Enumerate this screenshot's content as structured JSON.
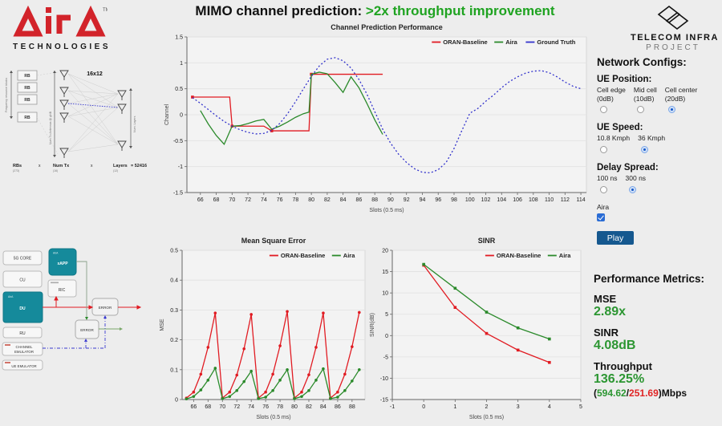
{
  "header": {
    "title_black": "MIMO channel prediction:",
    "title_green": " >2x throughput improvement",
    "aira": {
      "brand": "AirA",
      "tm": "TM",
      "tagline": "TECHNOLOGIES"
    },
    "tip": {
      "line1": "TELECOM INFRA",
      "line2": "PROJECT"
    }
  },
  "mimo_diagram": {
    "grid_size": "16x12",
    "freq_axis": "Frequency resource blocks",
    "tx_axis": "Num Tx Antennas @ gNB",
    "layers_axis": "Num. Layers",
    "rb": "RB",
    "formula": {
      "rbs": "RBs",
      "rbs_sub": "(273)",
      "x1": "x",
      "numtx": "Num Tx",
      "numtx_sub": "(16)",
      "x2": "x",
      "layers": "Layers",
      "layers_sub": "(12)",
      "result": "=  52416"
    }
  },
  "system_diagram": {
    "core": "5G CORE",
    "cu": "CU",
    "du": "DU",
    "ru": "RU",
    "channel_line1": "CHANNEL",
    "channel_line2": "EMULATOR",
    "ue": "UE EMULATOR",
    "xapp": "xAPP",
    "ric": "RIC",
    "error1": "ERROR",
    "error2": "ERROR",
    "aira_mark": "AirA"
  },
  "network_configs": {
    "heading": "Network Configs:",
    "ue_position": {
      "label": "UE Position:",
      "options": [
        {
          "label": "Cell edge",
          "sub": "(0dB)",
          "selected": false
        },
        {
          "label": "Mid cell",
          "sub": "(10dB)",
          "selected": false
        },
        {
          "label": "Cell center",
          "sub": "(20dB)",
          "selected": true
        }
      ]
    },
    "ue_speed": {
      "label": "UE Speed:",
      "options": [
        {
          "label": "10.8 Kmph",
          "selected": false
        },
        {
          "label": "36 Kmph",
          "selected": true
        }
      ]
    },
    "delay_spread": {
      "label": "Delay Spread:",
      "options": [
        {
          "label": "100 ns",
          "selected": false
        },
        {
          "label": "300 ns",
          "selected": true
        }
      ]
    },
    "aira_checkbox": {
      "label": "Aira",
      "checked": true
    },
    "play_label": "Play"
  },
  "metrics": {
    "heading": "Performance Metrics:",
    "mse_label": "MSE",
    "mse_value": "2.89x",
    "sinr_label": "SINR",
    "sinr_value": "4.08dB",
    "tp_label": "Throughput",
    "tp_value": "136.25%",
    "tp_open": "(",
    "tp_aira": "594.62",
    "tp_slash": "/",
    "tp_base": "251.69",
    "tp_close": ")Mbps"
  },
  "colors": {
    "red": "#e11b22",
    "green": "#2b8a2b",
    "blue": "#3333cc",
    "teal": "#158a9b",
    "brand_red": "#d2232a",
    "play_blue": "#15588f"
  },
  "chart_data": [
    {
      "type": "line",
      "title": "Channel Prediction Performance",
      "xlabel": "Slots (0.5 ms)",
      "ylabel": "Channel",
      "xlim": [
        64.3,
        114.7
      ],
      "ylim": [
        -1.5,
        1.5
      ],
      "xticks": [
        66,
        68,
        70,
        72,
        74,
        76,
        78,
        80,
        82,
        84,
        86,
        88,
        90,
        92,
        94,
        96,
        98,
        100,
        102,
        104,
        106,
        108,
        110,
        112,
        114
      ],
      "yticks": [
        -1.5,
        -1,
        -0.5,
        0,
        0.5,
        1,
        1.5
      ],
      "legend_position": "top-right",
      "grid": true,
      "series": [
        {
          "name": "ORAN-Baseline",
          "color": "#e11b22",
          "dash": "solid",
          "marker": "square",
          "marker_xs": [
            65,
            70,
            75,
            80,
            85
          ],
          "points": [
            [
              65,
              0.34
            ],
            [
              69,
              0.34
            ],
            [
              69.7,
              0.34
            ],
            [
              70,
              -0.22
            ],
            [
              74,
              -0.22
            ],
            [
              75,
              -0.31
            ],
            [
              79,
              -0.31
            ],
            [
              79.7,
              -0.31
            ],
            [
              80,
              0.78
            ],
            [
              89,
              0.78
            ]
          ]
        },
        {
          "name": "Aira",
          "color": "#2b8a2b",
          "dash": "solid",
          "marker": "none",
          "points": [
            [
              66,
              0.08
            ],
            [
              67,
              -0.18
            ],
            [
              68,
              -0.4
            ],
            [
              69,
              -0.57
            ],
            [
              70,
              -0.22
            ],
            [
              71,
              -0.21
            ],
            [
              72,
              -0.17
            ],
            [
              73,
              -0.12
            ],
            [
              74,
              -0.09
            ],
            [
              75,
              -0.28
            ],
            [
              76,
              -0.22
            ],
            [
              77,
              -0.14
            ],
            [
              78,
              -0.05
            ],
            [
              79,
              0.02
            ],
            [
              79.7,
              0.05
            ],
            [
              80,
              0.78
            ],
            [
              81,
              0.82
            ],
            [
              82,
              0.79
            ],
            [
              83,
              0.62
            ],
            [
              84,
              0.43
            ],
            [
              85,
              0.73
            ],
            [
              86,
              0.52
            ],
            [
              87,
              0.22
            ],
            [
              88,
              -0.1
            ],
            [
              89,
              -0.38
            ]
          ]
        },
        {
          "name": "Ground Truth",
          "color": "#3333cc",
          "dash": "dot",
          "marker": "none",
          "points": [
            [
              65,
              0.33
            ],
            [
              66,
              0.22
            ],
            [
              67,
              0.1
            ],
            [
              68,
              -0.02
            ],
            [
              69,
              -0.13
            ],
            [
              70,
              -0.22
            ],
            [
              71,
              -0.29
            ],
            [
              72,
              -0.34
            ],
            [
              73,
              -0.37
            ],
            [
              74,
              -0.36
            ],
            [
              75,
              -0.3
            ],
            [
              76,
              -0.17
            ],
            [
              77,
              0.02
            ],
            [
              78,
              0.25
            ],
            [
              79,
              0.5
            ],
            [
              80,
              0.74
            ],
            [
              81,
              0.94
            ],
            [
              82,
              1.07
            ],
            [
              83,
              1.1
            ],
            [
              84,
              1.04
            ],
            [
              85,
              0.9
            ],
            [
              86,
              0.68
            ],
            [
              87,
              0.4
            ],
            [
              88,
              0.06
            ],
            [
              89,
              -0.28
            ],
            [
              90,
              -0.55
            ],
            [
              91,
              -0.76
            ],
            [
              92,
              -0.92
            ],
            [
              93,
              -1.04
            ],
            [
              94,
              -1.11
            ],
            [
              95,
              -1.12
            ],
            [
              96,
              -1.06
            ],
            [
              97,
              -0.92
            ],
            [
              98,
              -0.65
            ],
            [
              99,
              -0.3
            ],
            [
              100,
              0.03
            ],
            [
              101,
              0.12
            ],
            [
              102,
              0.26
            ],
            [
              103,
              0.38
            ],
            [
              104,
              0.52
            ],
            [
              105,
              0.64
            ],
            [
              106,
              0.73
            ],
            [
              107,
              0.8
            ],
            [
              108,
              0.84
            ],
            [
              109,
              0.85
            ],
            [
              110,
              0.81
            ],
            [
              111,
              0.73
            ],
            [
              112,
              0.63
            ],
            [
              113,
              0.55
            ],
            [
              114,
              0.5
            ]
          ]
        }
      ]
    },
    {
      "type": "line",
      "title": "Mean Square Error",
      "xlabel": "Slots (0.5 ms)",
      "ylabel": "MSE",
      "xlim": [
        64.4,
        89.8
      ],
      "ylim": [
        0,
        0.5
      ],
      "xticks": [
        66,
        68,
        70,
        72,
        74,
        76,
        78,
        80,
        82,
        84,
        86,
        88
      ],
      "yticks": [
        0,
        0.1,
        0.2,
        0.3,
        0.4,
        0.5
      ],
      "legend_position": "top-right",
      "grid": true,
      "series": [
        {
          "name": "ORAN-Baseline",
          "color": "#e11b22",
          "dash": "solid",
          "marker": "circle",
          "points": [
            [
              65,
              0.005
            ],
            [
              66,
              0.025
            ],
            [
              67,
              0.085
            ],
            [
              68,
              0.175
            ],
            [
              69,
              0.29
            ],
            [
              70,
              0.005
            ],
            [
              71,
              0.025
            ],
            [
              72,
              0.082
            ],
            [
              73,
              0.17
            ],
            [
              74,
              0.285
            ],
            [
              75,
              0.005
            ],
            [
              76,
              0.025
            ],
            [
              77,
              0.085
            ],
            [
              78,
              0.18
            ],
            [
              79,
              0.295
            ],
            [
              80,
              0.005
            ],
            [
              81,
              0.025
            ],
            [
              82,
              0.083
            ],
            [
              83,
              0.175
            ],
            [
              84,
              0.29
            ],
            [
              85,
              0.005
            ],
            [
              86,
              0.025
            ],
            [
              87,
              0.085
            ],
            [
              88,
              0.177
            ],
            [
              89,
              0.292
            ]
          ]
        },
        {
          "name": "Aira",
          "color": "#2b8a2b",
          "dash": "solid",
          "marker": "circle",
          "points": [
            [
              65,
              0.002
            ],
            [
              66,
              0.01
            ],
            [
              67,
              0.032
            ],
            [
              68,
              0.065
            ],
            [
              69,
              0.105
            ],
            [
              70,
              0.003
            ],
            [
              71,
              0.01
            ],
            [
              72,
              0.03
            ],
            [
              73,
              0.06
            ],
            [
              74,
              0.095
            ],
            [
              75,
              0.003
            ],
            [
              76,
              0.008
            ],
            [
              77,
              0.03
            ],
            [
              78,
              0.065
            ],
            [
              79,
              0.1
            ],
            [
              80,
              0.003
            ],
            [
              81,
              0.01
            ],
            [
              82,
              0.03
            ],
            [
              83,
              0.065
            ],
            [
              84,
              0.103
            ],
            [
              85,
              0.003
            ],
            [
              86,
              0.008
            ],
            [
              87,
              0.03
            ],
            [
              88,
              0.062
            ],
            [
              89,
              0.1
            ]
          ]
        }
      ]
    },
    {
      "type": "line",
      "title": "SINR",
      "xlabel": "Slots (0.5 ms)",
      "ylabel": "SINR(dB)",
      "xlim": [
        -1,
        5
      ],
      "ylim": [
        -15,
        20
      ],
      "xticks": [
        -1,
        0,
        1,
        2,
        3,
        4,
        5
      ],
      "yticks": [
        -15,
        -10,
        -5,
        0,
        5,
        10,
        15,
        20
      ],
      "legend_position": "top-right",
      "grid": true,
      "series": [
        {
          "name": "ORAN-Baseline",
          "color": "#e11b22",
          "dash": "solid",
          "marker": "square",
          "points": [
            [
              0,
              16.5
            ],
            [
              1,
              6.6
            ],
            [
              2,
              0.5
            ],
            [
              3,
              -3.4
            ],
            [
              4,
              -6.3
            ]
          ]
        },
        {
          "name": "Aira",
          "color": "#2b8a2b",
          "dash": "solid",
          "marker": "square",
          "points": [
            [
              0,
              16.7
            ],
            [
              1,
              11.1
            ],
            [
              2,
              5.5
            ],
            [
              3,
              1.8
            ],
            [
              4,
              -0.8
            ]
          ]
        }
      ]
    }
  ]
}
